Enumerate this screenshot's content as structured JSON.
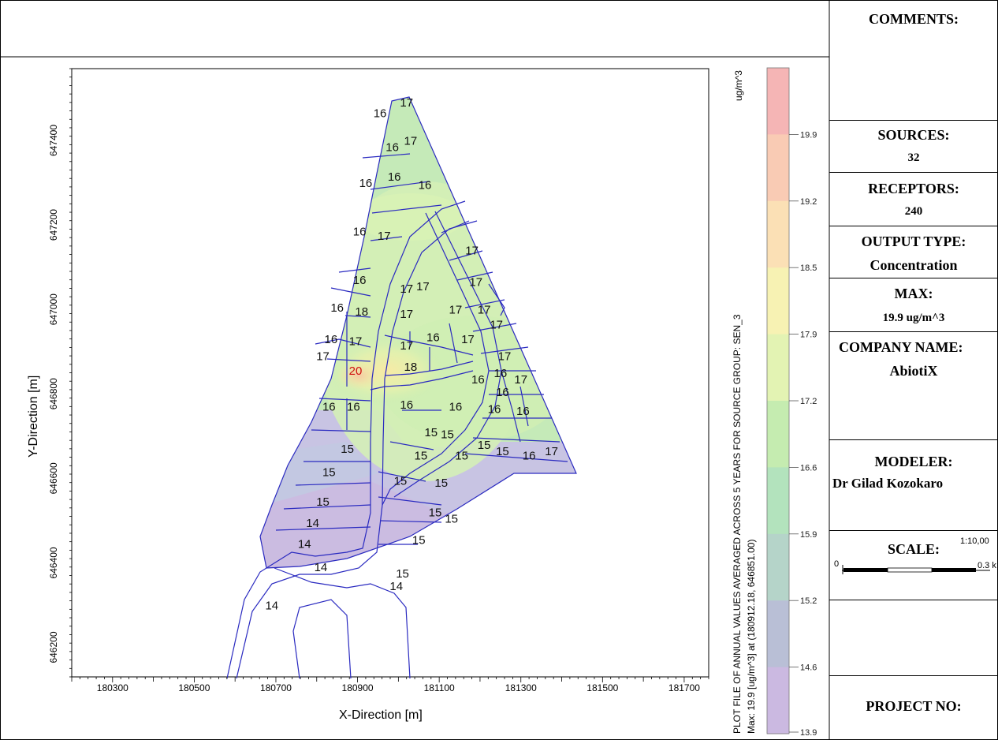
{
  "right_panel": {
    "comments_label": "COMMENTS:",
    "sources_label": "SOURCES:",
    "sources_value": "32",
    "receptors_label": "RECEPTORS:",
    "receptors_value": "240",
    "output_type_label": "OUTPUT TYPE:",
    "output_type_value": "Concentration",
    "max_label": "MAX:",
    "max_value": "19.9 ug/m^3",
    "company_label": "COMPANY NAME:",
    "company_value": "AbiotiX",
    "modeler_label": "MODELER:",
    "modeler_value": "Dr Gilad Kozokaro",
    "scale_label": "SCALE:",
    "scale_ratio": "1:10,00",
    "scale_zero": "0",
    "scale_length": "0.3 k",
    "project_label": "PROJECT NO:"
  },
  "colorbar": {
    "unit": "ug/m^3",
    "ticks": [
      19.9,
      19.2,
      18.5,
      17.9,
      17.2,
      16.6,
      15.9,
      15.2,
      14.6,
      13.9
    ],
    "colors": [
      "#f5b5b5",
      "#f9cbb4",
      "#fbe0b5",
      "#f7f2b3",
      "#e3f3b3",
      "#c5ecb0",
      "#b3e3bd",
      "#b5d4c9",
      "#b9bfd6",
      "#cbb9e1"
    ],
    "caption_line1": "PLOT FILE OF ANNUAL VALUES AVERAGED ACROSS 5 YEARS FOR SOURCE GROUP: SEN_3",
    "caption_line2": "Max: 19.9 [ug/m^3] at (180912.18, 646851.00)"
  },
  "chart_data": {
    "type": "heatmap",
    "xlabel": "X-Direction [m]",
    "ylabel": "Y-Direction [m]",
    "xlim": [
      180200,
      181760
    ],
    "ylim": [
      646130,
      647570
    ],
    "x_ticks": [
      180300,
      180500,
      180700,
      180900,
      181100,
      181300,
      181500,
      181700
    ],
    "y_ticks": [
      646200,
      646400,
      646600,
      646800,
      647000,
      647200,
      647400
    ],
    "labels": [
      {
        "x": 181020,
        "y": 647480,
        "v": "17"
      },
      {
        "x": 180955,
        "y": 647455,
        "v": "16"
      },
      {
        "x": 181030,
        "y": 647390,
        "v": "17"
      },
      {
        "x": 180985,
        "y": 647375,
        "v": "16"
      },
      {
        "x": 180990,
        "y": 647305,
        "v": "16"
      },
      {
        "x": 181065,
        "y": 647285,
        "v": "16"
      },
      {
        "x": 180920,
        "y": 647290,
        "v": "16"
      },
      {
        "x": 180905,
        "y": 647175,
        "v": "16"
      },
      {
        "x": 180965,
        "y": 647165,
        "v": "17"
      },
      {
        "x": 181180,
        "y": 647130,
        "v": "17"
      },
      {
        "x": 180905,
        "y": 647060,
        "v": "16"
      },
      {
        "x": 181020,
        "y": 647040,
        "v": "17"
      },
      {
        "x": 181060,
        "y": 647045,
        "v": "17"
      },
      {
        "x": 181190,
        "y": 647055,
        "v": "17"
      },
      {
        "x": 180850,
        "y": 646995,
        "v": "16"
      },
      {
        "x": 180910,
        "y": 646985,
        "v": "18"
      },
      {
        "x": 181020,
        "y": 646980,
        "v": "17"
      },
      {
        "x": 181140,
        "y": 646990,
        "v": "17"
      },
      {
        "x": 181210,
        "y": 646990,
        "v": "17"
      },
      {
        "x": 181240,
        "y": 646955,
        "v": "17"
      },
      {
        "x": 180835,
        "y": 646920,
        "v": "16"
      },
      {
        "x": 180895,
        "y": 646915,
        "v": "17"
      },
      {
        "x": 181020,
        "y": 646905,
        "v": "17"
      },
      {
        "x": 181085,
        "y": 646925,
        "v": "16"
      },
      {
        "x": 181170,
        "y": 646920,
        "v": "17"
      },
      {
        "x": 181260,
        "y": 646880,
        "v": "17"
      },
      {
        "x": 180815,
        "y": 646880,
        "v": "17"
      },
      {
        "x": 180895,
        "y": 646845,
        "v": "20",
        "max": true
      },
      {
        "x": 181030,
        "y": 646855,
        "v": "18"
      },
      {
        "x": 181195,
        "y": 646825,
        "v": "16"
      },
      {
        "x": 181250,
        "y": 646840,
        "v": "16"
      },
      {
        "x": 181300,
        "y": 646825,
        "v": "17"
      },
      {
        "x": 181255,
        "y": 646795,
        "v": "16"
      },
      {
        "x": 180830,
        "y": 646760,
        "v": "16"
      },
      {
        "x": 180890,
        "y": 646760,
        "v": "16"
      },
      {
        "x": 181020,
        "y": 646765,
        "v": "16"
      },
      {
        "x": 181140,
        "y": 646760,
        "v": "16"
      },
      {
        "x": 181235,
        "y": 646755,
        "v": "16"
      },
      {
        "x": 181305,
        "y": 646750,
        "v": "16"
      },
      {
        "x": 181080,
        "y": 646700,
        "v": "15"
      },
      {
        "x": 181120,
        "y": 646695,
        "v": "15"
      },
      {
        "x": 180875,
        "y": 646660,
        "v": "15"
      },
      {
        "x": 181055,
        "y": 646645,
        "v": "15"
      },
      {
        "x": 181155,
        "y": 646645,
        "v": "15"
      },
      {
        "x": 181210,
        "y": 646670,
        "v": "15"
      },
      {
        "x": 181255,
        "y": 646655,
        "v": "15"
      },
      {
        "x": 181320,
        "y": 646645,
        "v": "16"
      },
      {
        "x": 181375,
        "y": 646655,
        "v": "17"
      },
      {
        "x": 180830,
        "y": 646605,
        "v": "15"
      },
      {
        "x": 181005,
        "y": 646585,
        "v": "15"
      },
      {
        "x": 181105,
        "y": 646580,
        "v": "15"
      },
      {
        "x": 180815,
        "y": 646535,
        "v": "15"
      },
      {
        "x": 181090,
        "y": 646510,
        "v": "15"
      },
      {
        "x": 181130,
        "y": 646495,
        "v": "15"
      },
      {
        "x": 180790,
        "y": 646485,
        "v": "14"
      },
      {
        "x": 181050,
        "y": 646445,
        "v": "15"
      },
      {
        "x": 180770,
        "y": 646435,
        "v": "14"
      },
      {
        "x": 180810,
        "y": 646380,
        "v": "14"
      },
      {
        "x": 181010,
        "y": 646365,
        "v": "15"
      },
      {
        "x": 180995,
        "y": 646335,
        "v": "14"
      },
      {
        "x": 180690,
        "y": 646290,
        "v": "14"
      }
    ]
  }
}
